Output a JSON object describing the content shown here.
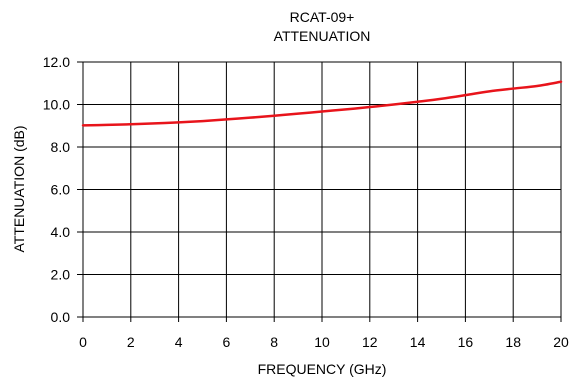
{
  "chart_data": {
    "type": "line",
    "title_lines": [
      "RCAT-09+",
      "ATTENUATION"
    ],
    "xlabel": "FREQUENCY (GHz)",
    "ylabel": "ATTENUATION (dB)",
    "xlim": [
      0,
      20
    ],
    "ylim": [
      0,
      12
    ],
    "x_ticks": [
      0,
      2,
      4,
      6,
      8,
      10,
      12,
      14,
      16,
      18,
      20
    ],
    "x_tick_labels": [
      "0",
      "2",
      "4",
      "6",
      "8",
      "10",
      "12",
      "14",
      "16",
      "18",
      "20"
    ],
    "y_ticks": [
      0,
      2,
      4,
      6,
      8,
      10,
      12
    ],
    "y_tick_labels": [
      "0.0",
      "2.0",
      "4.0",
      "6.0",
      "8.0",
      "10.0",
      "12.0"
    ],
    "grid": true,
    "series": [
      {
        "color": "#e8141b",
        "x": [
          0,
          1,
          2,
          3,
          4,
          5,
          6,
          7,
          8,
          9,
          10,
          11,
          12,
          13,
          14,
          15,
          16,
          17,
          18,
          19,
          20
        ],
        "y": [
          9.02,
          9.04,
          9.07,
          9.11,
          9.16,
          9.22,
          9.3,
          9.38,
          9.47,
          9.57,
          9.67,
          9.77,
          9.88,
          10.0,
          10.13,
          10.27,
          10.44,
          10.62,
          10.75,
          10.87,
          11.07
        ]
      }
    ]
  }
}
